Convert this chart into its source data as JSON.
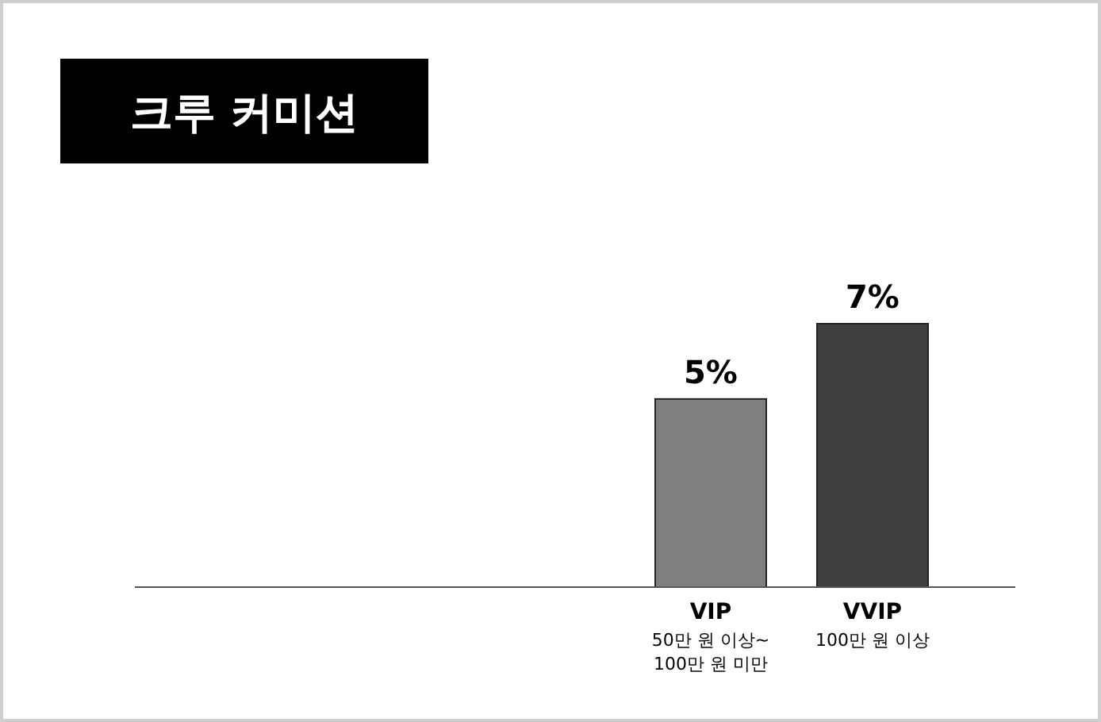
{
  "chart_data": {
    "type": "bar",
    "title": "크루 커미션",
    "categories": [
      null,
      null,
      null,
      "VIP\n50만 원 이상~\n100만 원 미만",
      "VVIP\n100만 원 이상"
    ],
    "values": [
      null,
      null,
      null,
      5,
      7
    ],
    "colors": [
      null,
      null,
      null,
      "#7f7f7f",
      "#404040"
    ],
    "value_labels": [
      null,
      null,
      null,
      "5%",
      "7%"
    ]
  }
}
